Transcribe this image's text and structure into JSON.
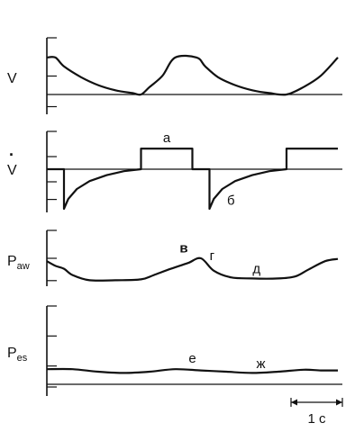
{
  "chart_data": [
    {
      "type": "line",
      "panel": "volume",
      "ylabel": "V",
      "ylabel_mark": "",
      "ylabel_sub": "",
      "ticks": 3,
      "x": [
        0,
        0.1,
        0.2,
        0.4,
        0.6,
        0.8,
        1.0,
        1.1,
        1.2,
        1.35,
        1.5,
        1.75,
        1.85,
        2.0,
        2.2,
        2.4,
        2.6,
        2.8,
        3.0,
        3.2,
        3.4
      ],
      "values": [
        0.79,
        0.79,
        0.6,
        0.37,
        0.2,
        0.09,
        0.03,
        0.0,
        0.16,
        0.4,
        0.79,
        0.79,
        0.6,
        0.37,
        0.2,
        0.09,
        0.03,
        0.0,
        0.16,
        0.4,
        0.79
      ],
      "baseline": 0.0,
      "annotations": []
    },
    {
      "type": "line",
      "panel": "flow",
      "ylabel": "V",
      "ylabel_mark": "·",
      "ylabel_sub": "",
      "ticks": 4,
      "x": [
        0,
        0.2,
        0.2,
        0.25,
        0.35,
        0.5,
        0.7,
        0.9,
        1.1,
        1.1,
        1.7,
        1.7,
        1.9,
        1.9,
        1.95,
        2.05,
        2.2,
        2.4,
        2.6,
        2.8,
        2.8,
        3.4
      ],
      "values": [
        0,
        0,
        -1.0,
        -0.75,
        -0.5,
        -0.3,
        -0.15,
        -0.05,
        0,
        0.52,
        0.52,
        0,
        0,
        -1.0,
        -0.75,
        -0.5,
        -0.3,
        -0.15,
        -0.05,
        0,
        0.52,
        0.52
      ],
      "baseline": 0,
      "annotations": [
        {
          "label": "а",
          "x": 1.4,
          "y": 0.68
        },
        {
          "label": "б",
          "x": 2.15,
          "y": -0.9
        }
      ]
    },
    {
      "type": "line",
      "panel": "airway-pressure",
      "ylabel": "P",
      "ylabel_mark": "",
      "ylabel_sub": "aw",
      "ticks": 3,
      "x": [
        0,
        0.1,
        0.2,
        0.3,
        0.5,
        0.8,
        1.1,
        1.25,
        1.45,
        1.65,
        1.8,
        1.95,
        2.15,
        2.4,
        2.7,
        2.9,
        3.05,
        3.25,
        3.4
      ],
      "values": [
        0.68,
        0.52,
        0.42,
        0.2,
        0.02,
        0.02,
        0.05,
        0.2,
        0.42,
        0.62,
        0.78,
        0.35,
        0.12,
        0.08,
        0.08,
        0.15,
        0.38,
        0.68,
        0.76
      ],
      "baseline": 0,
      "annotations": [
        {
          "label": "в",
          "x": 1.6,
          "y": 0.98
        },
        {
          "label": "г",
          "x": 1.93,
          "y": 0.72
        },
        {
          "label": "д",
          "x": 2.45,
          "y": 0.27
        }
      ]
    },
    {
      "type": "line",
      "panel": "esophageal-pressure",
      "ylabel": "P",
      "ylabel_mark": "",
      "ylabel_sub": "es",
      "ticks": 4,
      "x": [
        0,
        0.3,
        0.6,
        0.9,
        1.2,
        1.5,
        1.8,
        2.1,
        2.4,
        2.7,
        3.0,
        3.2,
        3.4
      ],
      "values": [
        0.1,
        0.1,
        0.0,
        -0.05,
        0.0,
        0.1,
        0.05,
        0.0,
        -0.05,
        0.0,
        0.08,
        0.05,
        0.05
      ],
      "baseline": -0.5,
      "annotations": [
        {
          "label": "е",
          "x": 1.7,
          "y": 0.35
        },
        {
          "label": "ж",
          "x": 2.5,
          "y": 0.15
        }
      ]
    }
  ],
  "scale_bar": {
    "label": "1 с",
    "seconds": 1
  }
}
